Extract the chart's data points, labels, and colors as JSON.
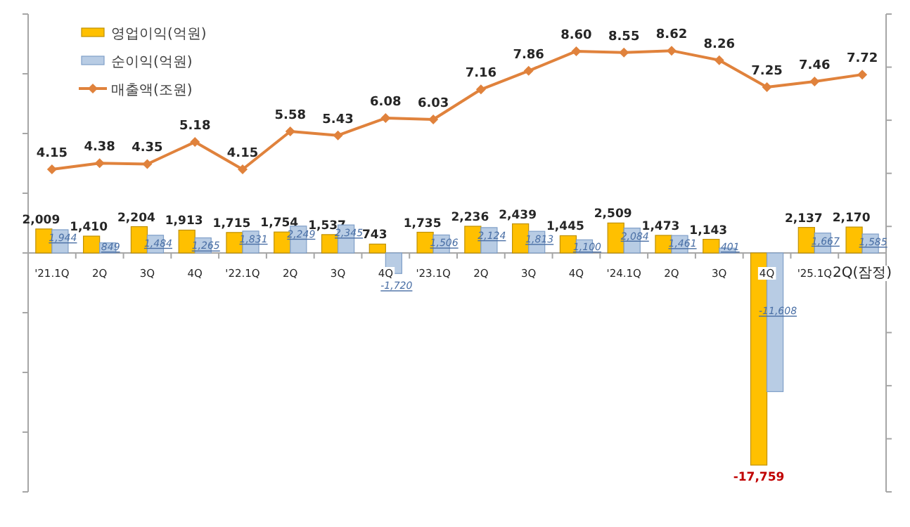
{
  "chart_data": {
    "type": "bar",
    "legend": "top left",
    "tick_labels": "x",
    "ylim": [
      -20000,
      20000
    ],
    "yticks": [
      {
        "value": -20000,
        "label": null
      },
      {
        "value": -15000,
        "label": null
      },
      {
        "value": -10000,
        "label": null
      },
      {
        "value": -5000,
        "label": null
      },
      {
        "value": 0,
        "label": null
      },
      {
        "value": 5000,
        "label": null
      },
      {
        "value": 10000,
        "label": null
      },
      {
        "value": 15000,
        "label": null
      },
      {
        "value": 20000,
        "label": null
      }
    ],
    "y2lim": [
      -8,
      10
    ],
    "y2ticks": [
      {
        "value": -8,
        "label": null
      },
      {
        "value": -6,
        "label": null
      },
      {
        "value": -4,
        "label": null
      },
      {
        "value": -2,
        "label": null
      },
      {
        "value": 0,
        "label": null
      },
      {
        "value": 2,
        "label": null
      },
      {
        "value": 4,
        "label": null
      },
      {
        "value": 6,
        "label": null
      },
      {
        "value": 8,
        "label": null
      },
      {
        "value": 10,
        "label": null
      }
    ],
    "categories": [
      "'21.1Q",
      "2Q",
      "3Q",
      "4Q",
      "'22.1Q",
      "2Q",
      "3Q",
      "4Q",
      "'23.1Q",
      "2Q",
      "3Q",
      "4Q",
      "'24.1Q",
      "2Q",
      "3Q",
      "4Q",
      "'25.1Q",
      "2Q(잠정)"
    ],
    "series": [
      {
        "name": "영업이익(억원)",
        "color": "#ffc000",
        "values": [
          2009,
          1410,
          2204,
          1913,
          1715,
          1754,
          1537,
          743,
          1735,
          2236,
          2439,
          1445,
          2509,
          1473,
          1143,
          -17759,
          2137,
          2170
        ],
        "value_labels": [
          "2,009",
          "1,410",
          "2,204",
          "1,913",
          "1,715",
          "1,754",
          "1,537",
          "743",
          "1,735",
          "2,236",
          "2,439",
          "1,445",
          "2,509",
          "1,473",
          "1,143",
          "-17,759",
          "2,137",
          "2,170"
        ]
      },
      {
        "name": "순이익(억원)",
        "color": "#b8cce4",
        "values": [
          1944,
          849,
          1484,
          1265,
          1831,
          2249,
          2345,
          -1720,
          1506,
          2124,
          1813,
          1100,
          2084,
          1461,
          401,
          -11608,
          1667,
          1585
        ],
        "value_labels": [
          "1,944",
          "849",
          "1,484",
          "1,265",
          "1,831",
          "2,249",
          "2,345",
          "-1,720",
          "1,506",
          "2,124",
          "1,813",
          "1,100",
          "2,084",
          "1,461",
          "401",
          "-11,608",
          "1,667",
          "1,585"
        ]
      },
      {
        "name": "매출액(조원)",
        "type": "line",
        "axis": "y2",
        "marker": "diamond",
        "color": "#e0823c",
        "values": [
          4.15,
          4.38,
          4.35,
          5.18,
          4.15,
          5.58,
          5.43,
          6.08,
          6.03,
          7.16,
          7.86,
          8.6,
          8.55,
          8.62,
          8.26,
          7.25,
          7.46,
          7.72
        ],
        "value_labels": [
          "4.15",
          "4.38",
          "4.35",
          "5.18",
          "4.15",
          "5.58",
          "5.43",
          "6.08",
          "6.03",
          "7.16",
          "7.86",
          "8.60",
          "8.55",
          "8.62",
          "8.26",
          "7.25",
          "7.46",
          "7.72"
        ]
      }
    ]
  }
}
